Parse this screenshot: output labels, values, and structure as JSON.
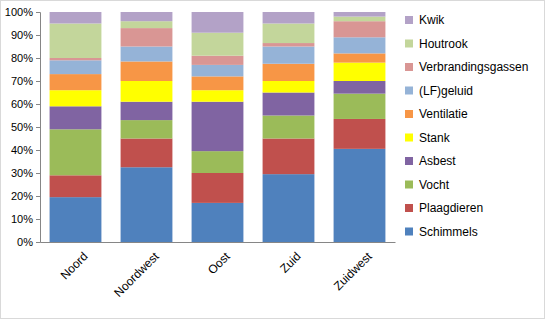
{
  "chart_data": {
    "type": "bar",
    "stacked": true,
    "grid": false,
    "legend": "right",
    "categories": [
      "Noord",
      "Noordwest",
      "Oost",
      "Zuid",
      "Zuidwest"
    ],
    "ylim": [
      0,
      100
    ],
    "yticks": [
      {
        "value": 0,
        "label": "0%"
      },
      {
        "value": 10,
        "label": "10%"
      },
      {
        "value": 20,
        "label": "20%"
      },
      {
        "value": 30,
        "label": "30%"
      },
      {
        "value": 40,
        "label": "40%"
      },
      {
        "value": 50,
        "label": "50%"
      },
      {
        "value": 60,
        "label": "60%"
      },
      {
        "value": 70,
        "label": "70%"
      },
      {
        "value": 80,
        "label": "80%"
      },
      {
        "value": 90,
        "label": "90%"
      },
      {
        "value": 100,
        "label": "100%"
      }
    ],
    "series": [
      {
        "name": "Schimmels",
        "color": "#4f81bd",
        "values": [
          19.5,
          32.5,
          17,
          29.5,
          40.5
        ]
      },
      {
        "name": "Plaagdieren",
        "color": "#c0504d",
        "values": [
          9.5,
          12.5,
          13,
          15.5,
          13
        ]
      },
      {
        "name": "Vocht",
        "color": "#9bbb59",
        "values": [
          20,
          8,
          9.5,
          10,
          11
        ]
      },
      {
        "name": "Asbest",
        "color": "#8064a2",
        "values": [
          10,
          8,
          21.5,
          10,
          5.5
        ]
      },
      {
        "name": "Stank",
        "color": "#ffff00",
        "values": [
          7,
          9,
          5,
          5,
          8
        ]
      },
      {
        "name": "Ventilatie",
        "color": "#f79646",
        "values": [
          7,
          8.5,
          6,
          7.5,
          4
        ]
      },
      {
        "name": "(LF)geluid",
        "color": "#95b3d7",
        "values": [
          6,
          6.5,
          5,
          7.5,
          7
        ]
      },
      {
        "name": "Verbrandingsgassen",
        "color": "#d99694",
        "values": [
          1,
          8,
          4,
          1.5,
          7
        ]
      },
      {
        "name": "Houtrook",
        "color": "#c3d69b",
        "values": [
          15,
          3,
          10,
          8.5,
          2
        ]
      },
      {
        "name": "Kwik",
        "color": "#b3a2c7",
        "values": [
          5,
          4,
          9,
          5,
          2
        ]
      }
    ]
  }
}
